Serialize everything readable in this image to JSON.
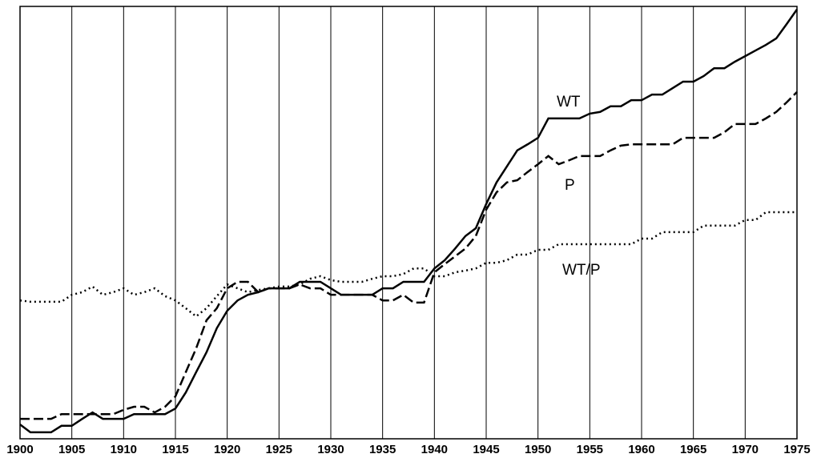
{
  "chart_data": {
    "type": "line",
    "x": [
      1900,
      1901,
      1902,
      1903,
      1904,
      1905,
      1906,
      1907,
      1908,
      1909,
      1910,
      1911,
      1912,
      1913,
      1914,
      1915,
      1916,
      1917,
      1918,
      1919,
      1920,
      1921,
      1922,
      1923,
      1924,
      1925,
      1926,
      1927,
      1928,
      1929,
      1930,
      1931,
      1932,
      1933,
      1934,
      1935,
      1936,
      1937,
      1938,
      1939,
      1940,
      1941,
      1942,
      1943,
      1944,
      1945,
      1946,
      1947,
      1948,
      1949,
      1950,
      1951,
      1952,
      1953,
      1954,
      1955,
      1956,
      1957,
      1958,
      1959,
      1960,
      1961,
      1962,
      1963,
      1964,
      1965,
      1966,
      1967,
      1968,
      1969,
      1970,
      1971,
      1972,
      1973,
      1974,
      1975
    ],
    "series": [
      {
        "name": "WT",
        "color": "#000000",
        "dash": "solid",
        "values": [
          3.3,
          1.5,
          1.5,
          1.5,
          3,
          3,
          4.6,
          6.1,
          4.6,
          4.6,
          4.6,
          5.7,
          5.7,
          5.7,
          5.7,
          7,
          10.7,
          15.4,
          20,
          25.6,
          29.6,
          32,
          33.3,
          33.9,
          34.8,
          34.8,
          34.8,
          36.3,
          36.3,
          36.3,
          34.8,
          33.3,
          33.3,
          33.3,
          33.3,
          34.8,
          34.8,
          36.3,
          36.3,
          36.3,
          39.4,
          41.3,
          44,
          46.9,
          48.7,
          54.3,
          59.3,
          63,
          66.7,
          68.1,
          69.6,
          74.1,
          74.1,
          74.1,
          74.1,
          75.2,
          75.6,
          76.9,
          76.9,
          78.3,
          78.3,
          79.6,
          79.6,
          81.1,
          82.6,
          82.6,
          83.9,
          85.7,
          85.7,
          87.2,
          88.5,
          89.8,
          91.1,
          92.6,
          95.9,
          99.3
        ]
      },
      {
        "name": "P",
        "color": "#000000",
        "dash": "dashed",
        "values": [
          4.6,
          4.6,
          4.6,
          4.6,
          5.7,
          5.7,
          5.7,
          5.7,
          5.7,
          5.7,
          6.7,
          7.4,
          7.4,
          6.1,
          7.4,
          9.8,
          15.4,
          20.9,
          27.4,
          30.2,
          34.8,
          36.3,
          36.3,
          33.9,
          34.8,
          34.8,
          34.8,
          35.7,
          34.8,
          34.8,
          33.3,
          33.3,
          33.3,
          33.3,
          33.3,
          32,
          32,
          33.3,
          31.5,
          31.5,
          38.5,
          40.4,
          42.2,
          44,
          46.9,
          53,
          57,
          59.3,
          59.8,
          61.7,
          63.5,
          65.4,
          63.5,
          64.4,
          65.4,
          65.4,
          65.4,
          66.7,
          67.8,
          68.1,
          68.1,
          68.1,
          68.1,
          68.1,
          69.6,
          69.6,
          69.6,
          69.6,
          70.9,
          72.8,
          72.8,
          72.8,
          74.1,
          75.6,
          77.8,
          80.2
        ]
      },
      {
        "name": "WT/P",
        "color": "#000000",
        "dash": "dotted",
        "values": [
          32,
          31.7,
          31.7,
          31.7,
          31.7,
          33.3,
          33.9,
          35.2,
          33.3,
          33.9,
          34.8,
          33.3,
          33.9,
          34.8,
          33,
          32,
          30.2,
          28.3,
          30.2,
          33,
          35.7,
          34.8,
          33.9,
          34.4,
          34.8,
          35.2,
          35.2,
          35.7,
          37,
          37.6,
          36.7,
          36.3,
          36.3,
          36.3,
          37,
          37.6,
          37.6,
          38.1,
          39.4,
          39.4,
          37.6,
          37.6,
          38.5,
          38.9,
          39.4,
          40.7,
          40.7,
          41.3,
          42.6,
          42.6,
          43.7,
          43.7,
          45,
          45,
          45,
          45,
          45,
          45,
          45,
          45,
          46.3,
          46.3,
          47.8,
          47.8,
          47.8,
          47.8,
          49.3,
          49.3,
          49.3,
          49.3,
          50.6,
          50.6,
          52.4,
          52.4,
          52.4,
          52.4
        ]
      }
    ],
    "xlim": [
      1900,
      1975
    ],
    "xticks": [
      1900,
      1905,
      1910,
      1915,
      1920,
      1925,
      1930,
      1935,
      1940,
      1945,
      1950,
      1955,
      1960,
      1965,
      1970,
      1975
    ],
    "ylim": [
      0,
      100
    ],
    "grid": true
  }
}
